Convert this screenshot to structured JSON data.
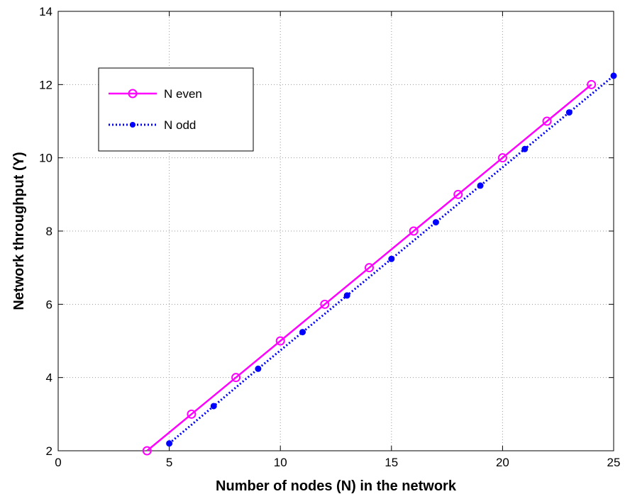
{
  "chart_data": {
    "type": "line",
    "xlabel": "Number of nodes (N) in the network",
    "ylabel": "Network throughput (Y)",
    "xlim": [
      0,
      25
    ],
    "ylim": [
      2,
      14
    ],
    "xticks": [
      0,
      5,
      10,
      15,
      20,
      25
    ],
    "yticks": [
      2,
      4,
      6,
      8,
      10,
      12,
      14
    ],
    "grid": true,
    "legend_position": "top-left",
    "series": [
      {
        "name": "N even",
        "color": "#ff00ff",
        "line_style": "solid",
        "marker": "open-circle",
        "x": [
          4,
          6,
          8,
          10,
          12,
          14,
          16,
          18,
          20,
          22,
          24
        ],
        "y": [
          2,
          3,
          4,
          5,
          6,
          7,
          8,
          9,
          10,
          11,
          12
        ]
      },
      {
        "name": "N odd",
        "color": "#0000ff",
        "line_style": "dotted",
        "marker": "filled-dot",
        "x": [
          5,
          7,
          9,
          11,
          13,
          15,
          17,
          19,
          21,
          23,
          25
        ],
        "y": [
          2.2,
          3.22,
          4.24,
          5.24,
          6.24,
          7.24,
          8.24,
          9.24,
          10.24,
          11.24,
          12.24
        ]
      }
    ]
  }
}
